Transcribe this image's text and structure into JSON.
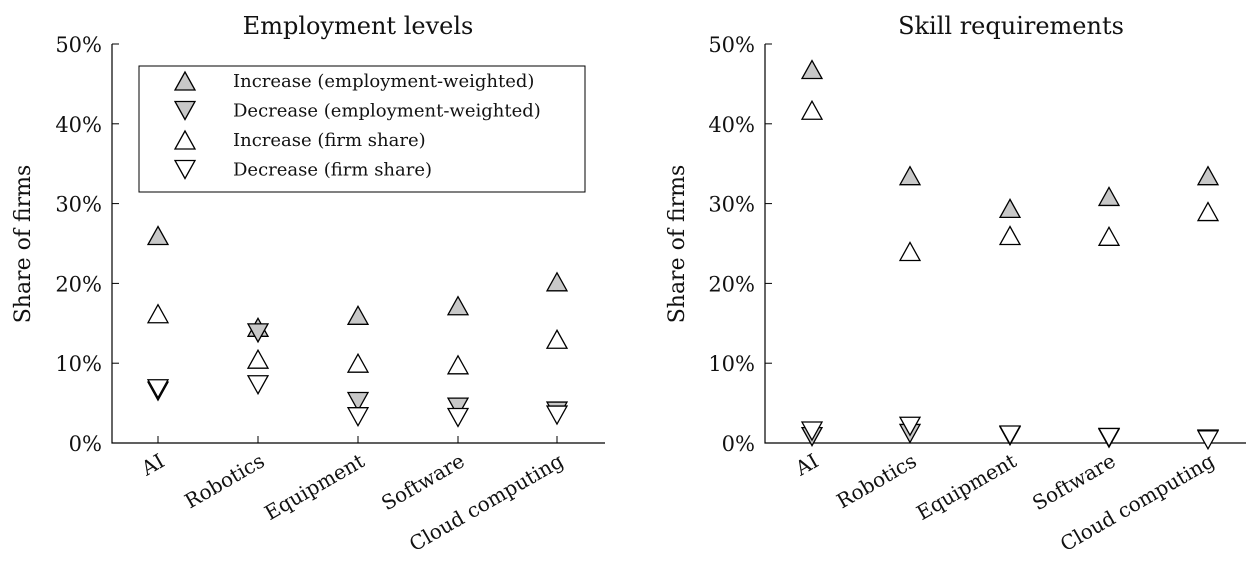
{
  "colors": {
    "filled_marker": "#c8c8c8",
    "hollow_marker": "#ffffff",
    "stroke": "#000000"
  },
  "chart_data": [
    {
      "type": "scatter",
      "title": "Employment levels",
      "xlabel": "",
      "ylabel": "Share of firms",
      "categories": [
        "AI",
        "Robotics",
        "Equipment",
        "Software",
        "Cloud computing"
      ],
      "ylim": [
        0,
        50
      ],
      "yticks": [
        "0%",
        "10%",
        "20%",
        "30%",
        "40%",
        "50%"
      ],
      "legend": {
        "placement": "top-right",
        "entries": [
          "Increase (employment-weighted)",
          "Decrease (employment-weighted)",
          "Increase (firm share)",
          "Decrease (firm share)"
        ]
      },
      "series": [
        {
          "name": "Increase (employment-weighted)",
          "marker": "up-filled",
          "values": [
            26.0,
            14.5,
            16.0,
            17.2,
            20.2
          ]
        },
        {
          "name": "Decrease (employment-weighted)",
          "marker": "down-filled",
          "values": [
            6.5,
            13.8,
            5.2,
            4.5,
            4.0
          ]
        },
        {
          "name": "Increase (firm share)",
          "marker": "up-hollow",
          "values": [
            16.2,
            10.5,
            10.0,
            9.8,
            13.0
          ]
        },
        {
          "name": "Decrease (firm share)",
          "marker": "down-hollow",
          "values": [
            6.8,
            7.3,
            3.3,
            3.2,
            3.5
          ]
        }
      ]
    },
    {
      "type": "scatter",
      "title": "Skill requirements",
      "xlabel": "",
      "ylabel": "Share of firms",
      "categories": [
        "AI",
        "Robotics",
        "Equipment",
        "Software",
        "Cloud computing"
      ],
      "ylim": [
        0,
        50
      ],
      "yticks": [
        "0%",
        "10%",
        "20%",
        "30%",
        "40%",
        "50%"
      ],
      "series": [
        {
          "name": "Increase (employment-weighted)",
          "marker": "up-filled",
          "values": [
            46.8,
            33.5,
            29.4,
            30.9,
            33.5
          ]
        },
        {
          "name": "Decrease (employment-weighted)",
          "marker": "down-filled",
          "values": [
            0.8,
            1.2,
            0.9,
            0.6,
            0.5
          ]
        },
        {
          "name": "Increase (firm share)",
          "marker": "up-hollow",
          "values": [
            41.7,
            24.0,
            26.0,
            25.9,
            29.0
          ]
        },
        {
          "name": "Decrease (firm share)",
          "marker": "down-hollow",
          "values": [
            1.5,
            2.1,
            1.0,
            0.7,
            0.4
          ]
        }
      ]
    }
  ]
}
